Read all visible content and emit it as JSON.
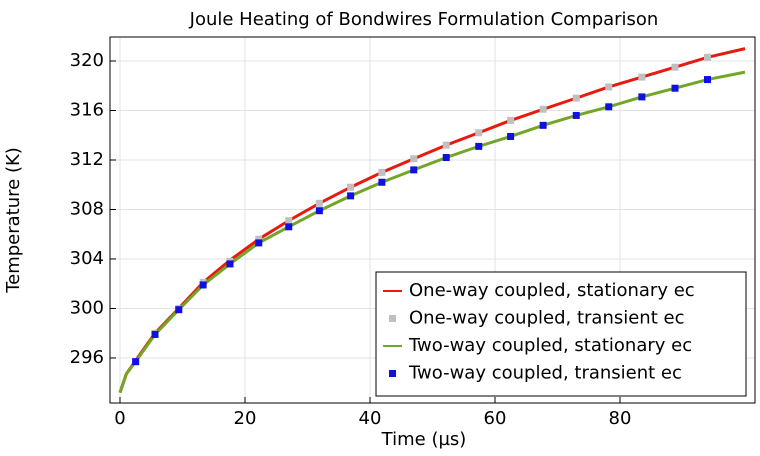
{
  "chart_data": {
    "type": "line",
    "title": "Joule Heating of Bondwires Formulation Comparison",
    "x_label": "Time (µs)",
    "y_label": "Temperature (K)",
    "xlim": [
      -1.6,
      101.6
    ],
    "ylim": [
      292.36,
      321.94
    ],
    "xticks": [
      0,
      20,
      40,
      60,
      80
    ],
    "yticks": [
      296,
      300,
      304,
      308,
      312,
      316,
      320
    ],
    "grid": true,
    "legend": "lower right",
    "series": [
      {
        "name": "One-way coupled, stationary ec",
        "color": "#e8190f",
        "style": "line",
        "x": [
          0,
          1,
          2.5,
          5.6,
          9.4,
          13.3,
          17.6,
          22.2,
          27,
          31.9,
          36.9,
          41.9,
          47,
          52.2,
          57.4,
          62.5,
          67.7,
          73,
          78.2,
          83.5,
          88.8,
          94,
          100
        ],
        "values": [
          293.2,
          294.7,
          295.8,
          298.0,
          300.0,
          302.1,
          303.9,
          305.6,
          307.1,
          308.5,
          309.8,
          311.0,
          312.1,
          313.2,
          314.2,
          315.2,
          316.1,
          317.0,
          317.9,
          318.7,
          319.5,
          320.3,
          321.0
        ]
      },
      {
        "name": "One-way coupled, transient ec",
        "color": "#c0c0c0",
        "style": "marker",
        "x": [
          2.5,
          5.6,
          9.4,
          13.3,
          17.6,
          22.2,
          27,
          31.9,
          36.9,
          41.9,
          47,
          52.2,
          57.4,
          62.5,
          67.7,
          73,
          78.2,
          83.5,
          88.8,
          94
        ],
        "values": [
          295.7,
          298.0,
          300.0,
          302.1,
          303.8,
          305.6,
          307.1,
          308.5,
          309.8,
          311.0,
          312.1,
          313.2,
          314.2,
          315.2,
          316.1,
          317.0,
          317.9,
          318.7,
          319.5,
          320.3
        ]
      },
      {
        "name": "Two-way coupled, stationary ec",
        "color": "#73a527",
        "style": "line",
        "x": [
          0,
          1,
          2.5,
          5.6,
          9.4,
          13.3,
          17.6,
          22.2,
          27,
          31.9,
          36.9,
          41.9,
          47,
          52.2,
          57.4,
          62.5,
          67.7,
          73,
          78.2,
          83.5,
          88.8,
          94,
          100
        ],
        "values": [
          293.2,
          294.7,
          295.7,
          297.9,
          299.9,
          301.9,
          303.6,
          305.3,
          306.6,
          307.9,
          309.1,
          310.2,
          311.2,
          312.2,
          313.1,
          313.9,
          314.8,
          315.6,
          316.3,
          317.1,
          317.8,
          318.5,
          319.1
        ]
      },
      {
        "name": "Two-way coupled, transient ec",
        "color": "#1010e0",
        "style": "marker",
        "x": [
          2.5,
          5.6,
          9.4,
          13.3,
          17.6,
          22.2,
          27,
          31.9,
          36.9,
          41.9,
          47,
          52.2,
          57.4,
          62.5,
          67.7,
          73,
          78.2,
          83.5,
          88.8,
          94
        ],
        "values": [
          295.7,
          297.9,
          299.9,
          301.9,
          303.6,
          305.3,
          306.6,
          307.9,
          309.1,
          310.2,
          311.2,
          312.2,
          313.1,
          313.9,
          314.8,
          315.6,
          316.3,
          317.1,
          317.8,
          318.5
        ]
      }
    ]
  }
}
